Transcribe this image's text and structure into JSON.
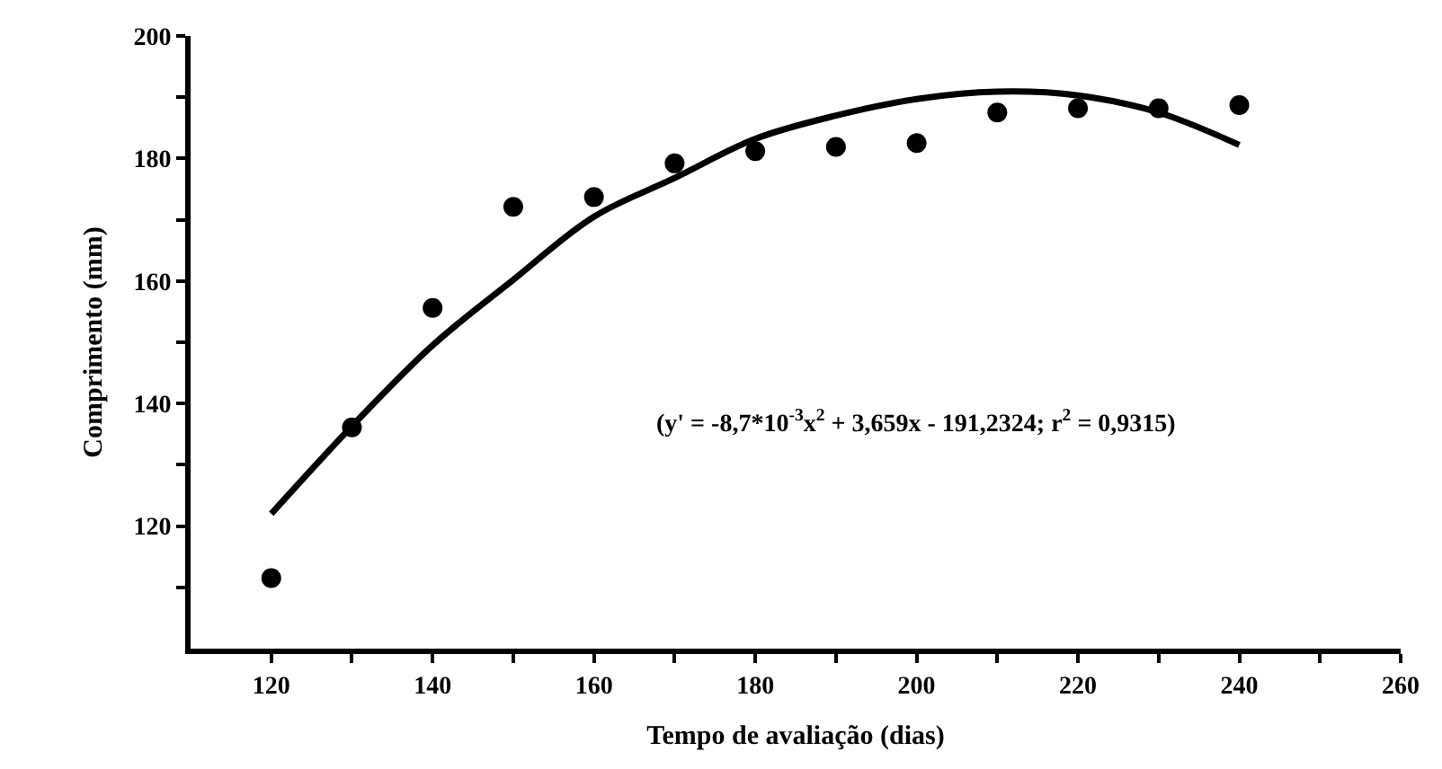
{
  "chart_data": {
    "type": "scatter",
    "xlabel": "Tempo de avaliação (dias)",
    "ylabel": "Comprimento (mm)",
    "annotations": [
      "(y' = -8,7*10$^{-3}$x$^{2}$ + 3,659x - 191,2324; r$^{2}$ = 0,9315)"
    ],
    "xlim": [
      110,
      260
    ],
    "ylim": [
      100,
      200
    ],
    "xticks": [
      120,
      {
        "value": 130,
        "label": null
      },
      140,
      {
        "value": 150,
        "label": null
      },
      160,
      {
        "value": 170,
        "label": null
      },
      180,
      {
        "value": 190,
        "label": null
      },
      200,
      {
        "value": 210,
        "label": null
      },
      220,
      {
        "value": 230,
        "label": null
      },
      240,
      {
        "value": 250,
        "label": null
      },
      260
    ],
    "yticks": [
      {
        "value": 110,
        "label": null
      },
      120,
      {
        "value": 130,
        "label": null
      },
      140,
      {
        "value": 150,
        "label": null
      },
      160,
      {
        "value": 170,
        "label": null
      },
      180,
      {
        "value": 190,
        "label": null
      },
      200
    ],
    "series": [
      {
        "color": "#000000",
        "marker": "circle",
        "x": [
          120,
          130,
          140,
          150,
          160,
          170,
          180,
          190,
          200,
          210,
          220,
          230,
          240
        ],
        "values": [
          111.5,
          136.1,
          155.6,
          172.1,
          173.7,
          179.2,
          181.2,
          181.9,
          182.5,
          187.5,
          188.2,
          188.2,
          188.7
        ]
      },
      {
        "type": "line",
        "color": "#000000",
        "line_style": "solid",
        "x": [
          120,
          130,
          140,
          150,
          160,
          170,
          180,
          190,
          200,
          210,
          220,
          230,
          240
        ],
        "values": [
          122.0,
          136.3,
          149.5,
          160.2,
          170.5,
          176.8,
          183.2,
          187.0,
          189.7,
          190.9,
          190.3,
          187.5,
          182.2
        ]
      }
    ]
  }
}
